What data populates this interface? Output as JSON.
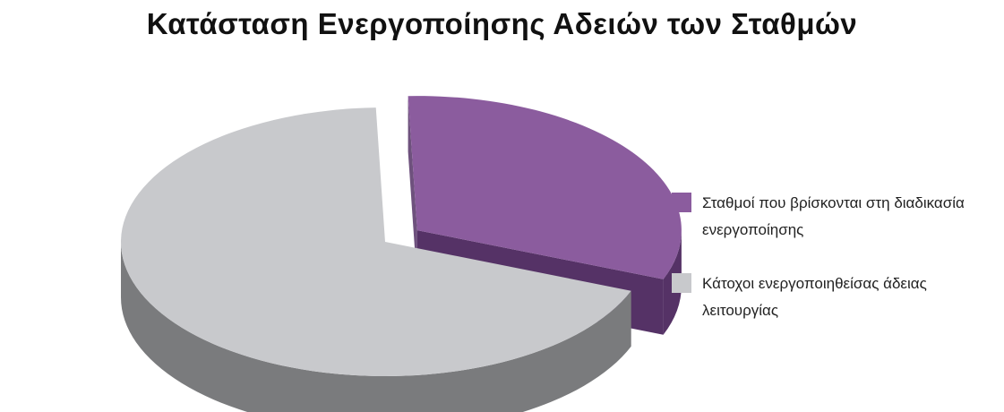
{
  "chart_data": {
    "type": "pie",
    "title": "Κατάσταση Ενεργοποίησης Αδειών των Σταθμών",
    "series": [
      {
        "name": "Σταθμοί που βρίσκονται στη διαδικασία ενεργοποίησης",
        "value": 31.5,
        "color": "#8b5c9e",
        "side_color": "#553266"
      },
      {
        "name": "Κάτοχοι ενεργοποιηθείσας άδειας λειτουργίας",
        "value": 68.5,
        "color": "#c8c9cc",
        "side_color": "#7a7b7d"
      }
    ],
    "legend_position": "right",
    "style": "3d-exploded"
  }
}
